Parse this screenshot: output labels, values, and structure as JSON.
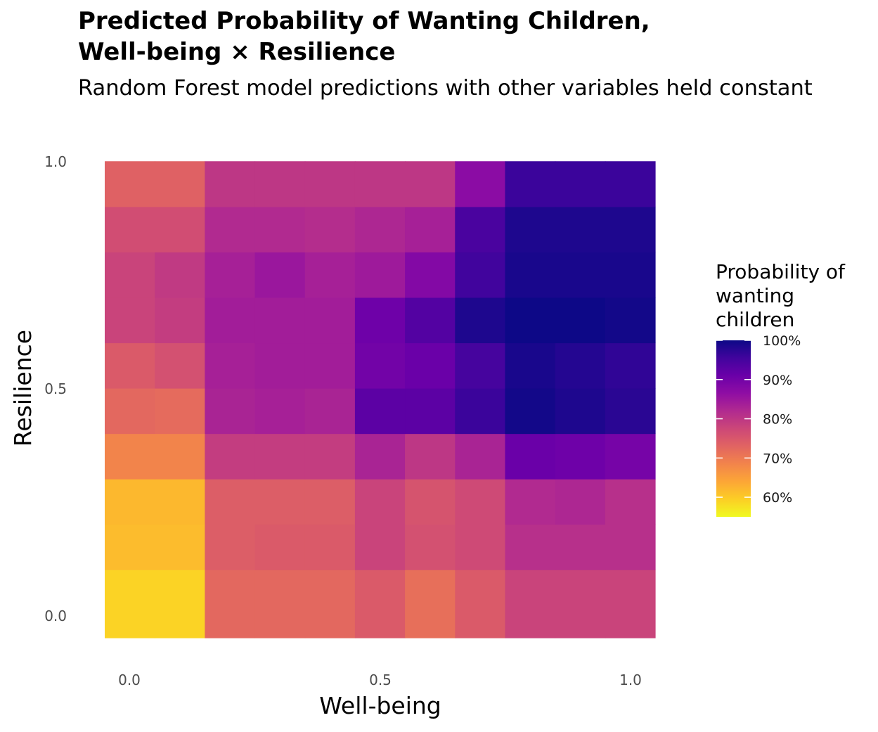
{
  "chart_data": {
    "type": "heatmap",
    "title_lines": [
      "Predicted Probability of Wanting Children,",
      "Well-being × Resilience"
    ],
    "subtitle": "Random Forest model predictions with other variables held constant",
    "xlabel": "Well-being",
    "ylabel": "Resilience",
    "x_ticks": [
      "0.0",
      "0.5",
      "1.0"
    ],
    "y_ticks": [
      "0.0",
      "0.5",
      "1.0"
    ],
    "x_range": [
      -0.05,
      1.05
    ],
    "y_range": [
      -0.05,
      1.05
    ],
    "x_bins": [
      -0.05,
      0.05,
      0.15,
      0.25,
      0.35,
      0.45,
      0.55,
      0.65,
      0.75,
      0.85,
      0.95,
      1.05
    ],
    "y_bins": [
      -0.05,
      0.1,
      0.2,
      0.3,
      0.4,
      0.5,
      0.6,
      0.7,
      0.8,
      0.9,
      1.0
    ],
    "values": [
      [
        0.59,
        0.59,
        0.725,
        0.725,
        0.725,
        0.745,
        0.715,
        0.745,
        0.78,
        0.78,
        0.78
      ],
      [
        0.615,
        0.615,
        0.74,
        0.745,
        0.745,
        0.78,
        0.76,
        0.77,
        0.81,
        0.81,
        0.81
      ],
      [
        0.62,
        0.62,
        0.74,
        0.74,
        0.74,
        0.78,
        0.755,
        0.77,
        0.82,
        0.825,
        0.81
      ],
      [
        0.685,
        0.685,
        0.79,
        0.79,
        0.79,
        0.83,
        0.8,
        0.83,
        0.91,
        0.905,
        0.895
      ],
      [
        0.725,
        0.72,
        0.83,
        0.835,
        0.83,
        0.925,
        0.925,
        0.96,
        0.995,
        0.985,
        0.975
      ],
      [
        0.745,
        0.76,
        0.835,
        0.84,
        0.84,
        0.9,
        0.91,
        0.95,
        0.99,
        0.98,
        0.97
      ],
      [
        0.78,
        0.79,
        0.84,
        0.84,
        0.84,
        0.905,
        0.935,
        0.985,
        1.0,
        1.0,
        0.995
      ],
      [
        0.78,
        0.795,
        0.835,
        0.85,
        0.835,
        0.845,
        0.88,
        0.955,
        0.99,
        0.99,
        0.99
      ],
      [
        0.765,
        0.765,
        0.82,
        0.82,
        0.815,
        0.825,
        0.835,
        0.945,
        0.985,
        0.985,
        0.985
      ],
      [
        0.735,
        0.735,
        0.8,
        0.8,
        0.8,
        0.8,
        0.8,
        0.87,
        0.96,
        0.96,
        0.96
      ]
    ],
    "colorscale": "plasma",
    "color_range": [
      0.55,
      1.0
    ],
    "legend": {
      "title_lines": [
        "Probability of",
        "wanting",
        "children"
      ],
      "labels": [
        "100%",
        "90%",
        "80%",
        "70%",
        "60%"
      ],
      "label_values": [
        1.0,
        0.9,
        0.8,
        0.7,
        0.6
      ],
      "position": "right"
    },
    "grid": false
  }
}
